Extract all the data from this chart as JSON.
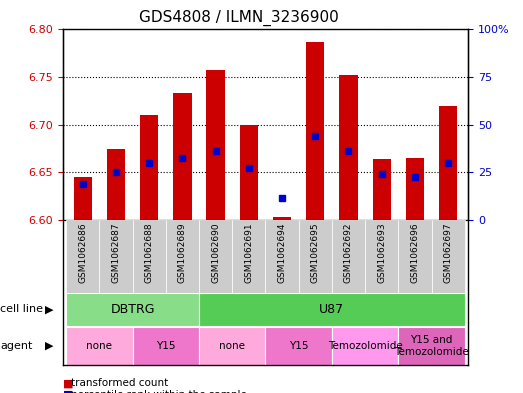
{
  "title": "GDS4808 / ILMN_3236900",
  "samples": [
    "GSM1062686",
    "GSM1062687",
    "GSM1062688",
    "GSM1062689",
    "GSM1062690",
    "GSM1062691",
    "GSM1062694",
    "GSM1062695",
    "GSM1062692",
    "GSM1062693",
    "GSM1062696",
    "GSM1062697"
  ],
  "red_values": [
    6.645,
    6.675,
    6.71,
    6.733,
    6.757,
    6.7,
    6.603,
    6.787,
    6.752,
    6.664,
    6.665,
    6.72
  ],
  "blue_values": [
    6.638,
    6.65,
    6.66,
    6.665,
    6.672,
    6.655,
    6.623,
    6.688,
    6.672,
    6.648,
    6.645,
    6.66
  ],
  "red_base": 6.6,
  "ylim_left": [
    6.6,
    6.8
  ],
  "ylim_right": [
    0,
    100
  ],
  "yticks_left": [
    6.6,
    6.65,
    6.7,
    6.75,
    6.8
  ],
  "yticks_right": [
    0,
    25,
    50,
    75,
    100
  ],
  "ytick_labels_right": [
    "0",
    "25",
    "50",
    "75",
    "100%"
  ],
  "bar_color": "#cc0000",
  "dot_color": "#0000cc",
  "bar_width": 0.55,
  "cell_line_groups": [
    {
      "label": "DBTRG",
      "start": 0,
      "end": 3,
      "color": "#88dd88"
    },
    {
      "label": "U87",
      "start": 4,
      "end": 11,
      "color": "#55cc55"
    }
  ],
  "agent_groups": [
    {
      "label": "none",
      "start": 0,
      "end": 1,
      "color": "#ffaadd"
    },
    {
      "label": "Y15",
      "start": 2,
      "end": 3,
      "color": "#ee77cc"
    },
    {
      "label": "none",
      "start": 4,
      "end": 5,
      "color": "#ffaadd"
    },
    {
      "label": "Y15",
      "start": 6,
      "end": 7,
      "color": "#ee77cc"
    },
    {
      "label": "Temozolomide",
      "start": 8,
      "end": 9,
      "color": "#ff99ee"
    },
    {
      "label": "Y15 and\nTemozolomide",
      "start": 10,
      "end": 11,
      "color": "#dd66bb"
    }
  ],
  "tick_label_color_left": "#cc0000",
  "tick_label_color_right": "#0000cc",
  "xtick_bg_color": "#cccccc",
  "plot_bg_color": "#ffffff",
  "grid_color": "#000000"
}
